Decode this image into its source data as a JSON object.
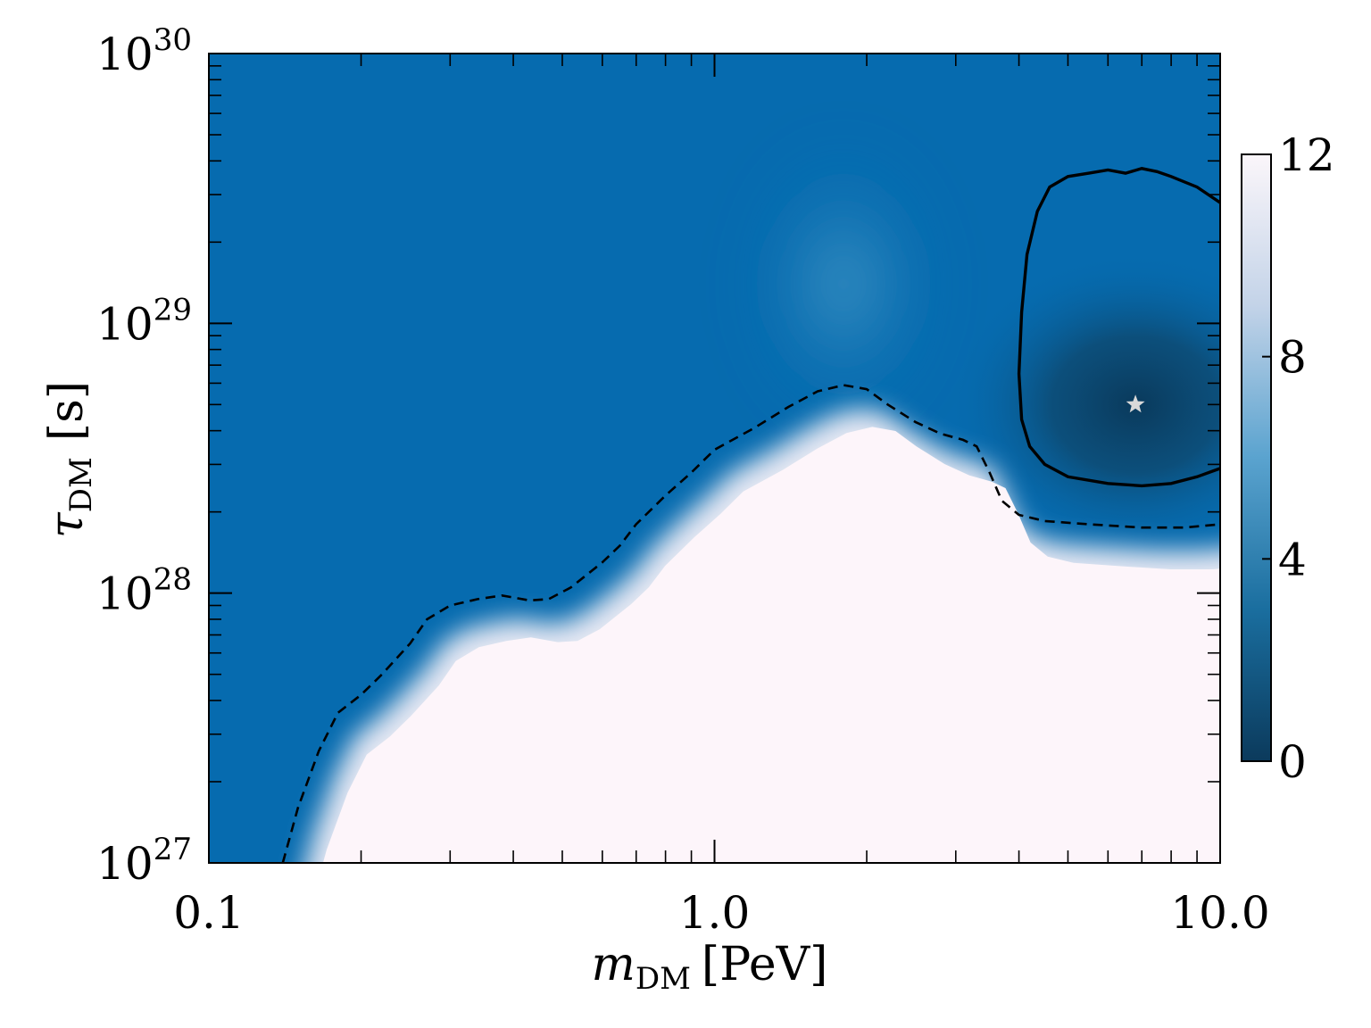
{
  "chart_data": {
    "type": "heatmap",
    "title": "",
    "xlabel": "m_DM [PeV]",
    "ylabel": "τ_DM  [s]",
    "xlabel_parts": {
      "var": "m",
      "sub": "DM",
      "unit": "[PeV]"
    },
    "ylabel_parts": {
      "var": "τ",
      "sub": "DM",
      "unit": "[s]"
    },
    "x_scale": "log",
    "y_scale": "log",
    "xlim": [
      0.1,
      10.0
    ],
    "ylim": [
      1e+27,
      1e+30
    ],
    "x_ticks": [
      {
        "value": 0.1,
        "label": "0.1"
      },
      {
        "value": 1.0,
        "label": "1.0"
      },
      {
        "value": 10.0,
        "label": "10.0"
      }
    ],
    "y_ticks": [
      {
        "value": 1e+27,
        "base": "10",
        "exp": "27"
      },
      {
        "value": 1e+28,
        "base": "10",
        "exp": "28"
      },
      {
        "value": 1e+29,
        "base": "10",
        "exp": "29"
      },
      {
        "value": 1e+30,
        "base": "10",
        "exp": "30"
      }
    ],
    "colorbar": {
      "range": [
        0,
        12
      ],
      "ticks": [
        {
          "value": 0,
          "label": "0"
        },
        {
          "value": 4,
          "label": "4"
        },
        {
          "value": 8,
          "label": "8"
        },
        {
          "value": 12,
          "label": "12"
        }
      ],
      "colors": [
        "#0b3a5c",
        "#1a6e9f",
        "#5aa3cf",
        "#c3d3e8",
        "#fbf6fa"
      ]
    },
    "colors": {
      "background_blue": "#066baf",
      "minimum_dark": "#0a3a5c",
      "excluded_region": "#fdf5fa",
      "contour_line": "#000000",
      "best_fit_marker": "#d9d9d9"
    },
    "best_fit": {
      "x": 6.8,
      "y": 5e+28,
      "marker": "star"
    },
    "dashed_contour": {
      "style": "dashed",
      "points": [
        [
          0.14,
          1e+27
        ],
        [
          0.15,
          1.6e+27
        ],
        [
          0.165,
          2.6e+27
        ],
        [
          0.18,
          3.6e+27
        ],
        [
          0.2,
          4.2e+27
        ],
        [
          0.22,
          5e+27
        ],
        [
          0.25,
          6.5e+27
        ],
        [
          0.27,
          8e+27
        ],
        [
          0.3,
          9e+27
        ],
        [
          0.34,
          9.5e+27
        ],
        [
          0.38,
          9.8e+27
        ],
        [
          0.43,
          9.4e+27
        ],
        [
          0.47,
          9.5e+27
        ],
        [
          0.52,
          1.05e+28
        ],
        [
          0.6,
          1.3e+28
        ],
        [
          0.65,
          1.5e+28
        ],
        [
          0.7,
          1.8e+28
        ],
        [
          0.8,
          2.3e+28
        ],
        [
          0.9,
          2.8e+28
        ],
        [
          1.0,
          3.4e+28
        ],
        [
          1.2,
          4.1e+28
        ],
        [
          1.4,
          4.9e+28
        ],
        [
          1.6,
          5.6e+28
        ],
        [
          1.8,
          5.9e+28
        ],
        [
          2.0,
          5.7e+28
        ],
        [
          2.2,
          5e+28
        ],
        [
          2.5,
          4.3e+28
        ],
        [
          2.8,
          3.9e+28
        ],
        [
          3.1,
          3.7e+28
        ],
        [
          3.3,
          3.5e+28
        ],
        [
          3.5,
          2.8e+28
        ],
        [
          3.7,
          2.2e+28
        ],
        [
          4.0,
          1.95e+28
        ],
        [
          4.5,
          1.85e+28
        ],
        [
          5.5,
          1.8e+28
        ],
        [
          7.0,
          1.75e+28
        ],
        [
          8.5,
          1.75e+28
        ],
        [
          10.0,
          1.8e+28
        ]
      ]
    },
    "solid_contour": {
      "style": "solid",
      "points": [
        [
          10.0,
          2.8e+29
        ],
        [
          9.0,
          3.2e+29
        ],
        [
          8.0,
          3.5e+29
        ],
        [
          7.5,
          3.65e+29
        ],
        [
          7.0,
          3.75e+29
        ],
        [
          6.5,
          3.6e+29
        ],
        [
          6.0,
          3.7e+29
        ],
        [
          5.5,
          3.6e+29
        ],
        [
          5.0,
          3.5e+29
        ],
        [
          4.6,
          3.2e+29
        ],
        [
          4.35,
          2.6e+29
        ],
        [
          4.15,
          1.8e+29
        ],
        [
          4.05,
          1.1e+29
        ],
        [
          4.0,
          6.5e+28
        ],
        [
          4.05,
          4.4e+28
        ],
        [
          4.2,
          3.5e+28
        ],
        [
          4.5,
          3e+28
        ],
        [
          5.0,
          2.7e+28
        ],
        [
          6.0,
          2.55e+28
        ],
        [
          7.0,
          2.5e+28
        ],
        [
          8.0,
          2.55e+28
        ],
        [
          9.0,
          2.7e+28
        ],
        [
          10.0,
          2.9e+28
        ]
      ]
    }
  }
}
